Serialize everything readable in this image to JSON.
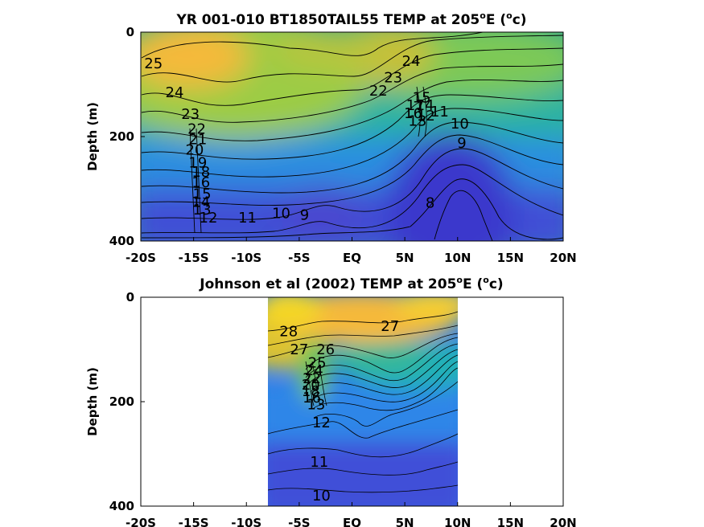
{
  "colors": {
    "warm": "#f5b93f",
    "mid": "#7fc957",
    "teal": "#23b3a8",
    "blue": "#3b6fe0",
    "deep": "#3a3fcf",
    "contour": "#000000"
  },
  "chart_data": [
    {
      "type": "heatmap",
      "title": "YR 001-010 BT1850TAIL55 TEMP at 205",
      "title_sup": "o",
      "title_tail": "E (",
      "title_unit_sup": "o",
      "title_unit": "c)",
      "ylabel": "Depth (m)",
      "xlabel": "",
      "xlim": [
        -20,
        20
      ],
      "ylim": [
        400,
        0
      ],
      "x_ticks": [
        "-20S",
        "-15S",
        "-10S",
        "-5S",
        "EQ",
        "5N",
        "10N",
        "15N",
        "20N"
      ],
      "y_ticks": [
        "0",
        "200",
        "400"
      ],
      "data_extent": [
        -20,
        20
      ],
      "contour_labels": [
        {
          "text": "25",
          "x": -18.8,
          "depth": 60
        },
        {
          "text": "24",
          "x": -16.8,
          "depth": 115
        },
        {
          "text": "23",
          "x": -15.3,
          "depth": 157
        },
        {
          "text": "22",
          "x": -14.7,
          "depth": 185
        },
        {
          "text": "21",
          "x": -14.6,
          "depth": 205
        },
        {
          "text": "20",
          "x": -14.9,
          "depth": 225
        },
        {
          "text": "19",
          "x": -14.6,
          "depth": 250
        },
        {
          "text": "18",
          "x": -14.3,
          "depth": 268
        },
        {
          "text": "16",
          "x": -14.3,
          "depth": 288
        },
        {
          "text": "15",
          "x": -14.2,
          "depth": 310
        },
        {
          "text": "14",
          "x": -14.3,
          "depth": 325
        },
        {
          "text": "13",
          "x": -14.2,
          "depth": 340
        },
        {
          "text": "12",
          "x": -13.6,
          "depth": 355
        },
        {
          "text": "11",
          "x": -9.9,
          "depth": 355
        },
        {
          "text": "10",
          "x": -6.7,
          "depth": 347
        },
        {
          "text": "9",
          "x": -4.5,
          "depth": 350
        },
        {
          "text": "24",
          "x": 5.6,
          "depth": 55
        },
        {
          "text": "23",
          "x": 3.9,
          "depth": 87
        },
        {
          "text": "22",
          "x": 2.5,
          "depth": 112
        },
        {
          "text": "11",
          "x": 8.3,
          "depth": 152
        },
        {
          "text": "10",
          "x": 10.2,
          "depth": 175
        },
        {
          "text": "9",
          "x": 10.4,
          "depth": 212
        },
        {
          "text": "8",
          "x": 7.4,
          "depth": 327
        },
        {
          "text": "17",
          "x": 6.0,
          "depth": 140
        },
        {
          "text": "16",
          "x": 5.8,
          "depth": 155
        },
        {
          "text": "15",
          "x": 6.6,
          "depth": 125
        },
        {
          "text": "14",
          "x": 6.9,
          "depth": 140
        },
        {
          "text": "13",
          "x": 6.2,
          "depth": 170
        },
        {
          "text": "12",
          "x": 7.0,
          "depth": 160
        }
      ]
    },
    {
      "type": "heatmap",
      "title": "Johnson et al (2002) TEMP at 205",
      "title_sup": "o",
      "title_tail": "E (",
      "title_unit_sup": "o",
      "title_unit": "c)",
      "ylabel": "Depth (m)",
      "xlabel": "",
      "xlim": [
        -20,
        20
      ],
      "ylim": [
        400,
        0
      ],
      "x_ticks": [
        "-20S",
        "-15S",
        "-10S",
        "-5S",
        "EQ",
        "5N",
        "10N",
        "15N",
        "20N"
      ],
      "y_ticks": [
        "0",
        "200",
        "400"
      ],
      "data_extent": [
        -8,
        10
      ],
      "contour_labels": [
        {
          "text": "28",
          "x": -6.0,
          "depth": 65
        },
        {
          "text": "27",
          "x": -5.0,
          "depth": 100
        },
        {
          "text": "26",
          "x": -2.5,
          "depth": 100
        },
        {
          "text": "27",
          "x": 3.6,
          "depth": 55
        },
        {
          "text": "25",
          "x": -3.3,
          "depth": 125
        },
        {
          "text": "24",
          "x": -3.6,
          "depth": 140
        },
        {
          "text": "22",
          "x": -3.8,
          "depth": 155
        },
        {
          "text": "20",
          "x": -3.9,
          "depth": 168
        },
        {
          "text": "18",
          "x": -3.9,
          "depth": 180
        },
        {
          "text": "16",
          "x": -3.8,
          "depth": 192
        },
        {
          "text": "13",
          "x": -3.4,
          "depth": 205
        },
        {
          "text": "12",
          "x": -2.9,
          "depth": 240
        },
        {
          "text": "11",
          "x": -3.1,
          "depth": 315
        },
        {
          "text": "10",
          "x": -2.9,
          "depth": 380
        }
      ]
    }
  ]
}
